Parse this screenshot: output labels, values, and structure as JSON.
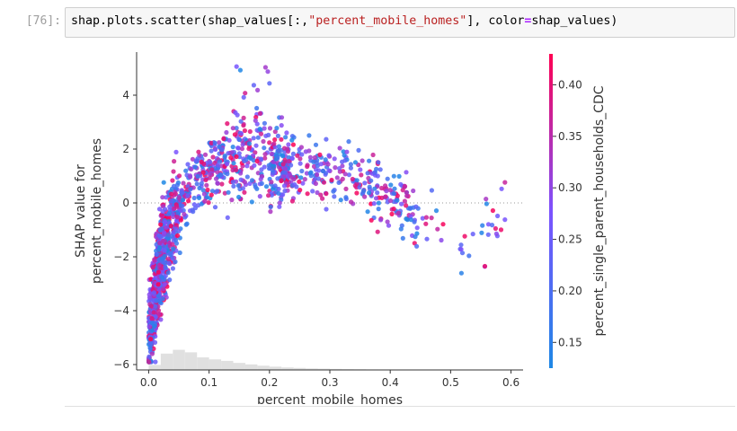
{
  "cell": {
    "prompt": "[76]:",
    "code_parts": {
      "p1": "shap.plots.scatter(shap_values[:,",
      "p2": "\"percent_mobile_homes\"",
      "p3": "], color",
      "p4": "=",
      "p5": "shap_values)"
    }
  },
  "chart_data": {
    "type": "scatter",
    "xlabel": "percent_mobile_homes",
    "ylabel_lines": [
      "SHAP value for",
      "percent_mobile_homes"
    ],
    "xlim": [
      -0.02,
      0.62
    ],
    "ylim": [
      -6.2,
      5.6
    ],
    "xticks": [
      0.0,
      0.1,
      0.2,
      0.3,
      0.4,
      0.5,
      0.6
    ],
    "xtick_labels": [
      "0.0",
      "0.1",
      "0.2",
      "0.3",
      "0.4",
      "0.5",
      "0.6"
    ],
    "yticks": [
      -6,
      -4,
      -2,
      0,
      2,
      4
    ],
    "ytick_labels": [
      "−6",
      "−4",
      "−2",
      "0",
      "2",
      "4"
    ],
    "colorbar": {
      "label": "percent_single_parent_households_CDC",
      "range": [
        0.125,
        0.43
      ],
      "ticks": [
        0.15,
        0.2,
        0.25,
        0.3,
        0.35,
        0.4
      ],
      "tick_labels": [
        "0.15",
        "0.20",
        "0.25",
        "0.30",
        "0.35",
        "0.40"
      ],
      "colors": [
        "#1e88e5",
        "#7c52ff",
        "#ff0052"
      ]
    },
    "grid": false,
    "zero_line": "dotted",
    "histogram": {
      "bin_width": 0.02,
      "relative_heights": [
        0.2,
        0.65,
        0.8,
        0.7,
        0.5,
        0.42,
        0.36,
        0.28,
        0.22,
        0.17,
        0.13,
        0.1,
        0.08,
        0.06,
        0.05,
        0.04,
        0.03,
        0.025,
        0.02,
        0.015,
        0.01,
        0.01,
        0.008,
        0.005,
        0.003,
        0.002,
        0.002,
        0.001,
        0.001,
        0.001
      ],
      "color": "#e0e0e0"
    },
    "trend": [
      [
        0.0,
        -5.0
      ],
      [
        0.02,
        -2.2
      ],
      [
        0.04,
        -0.6
      ],
      [
        0.06,
        0.3
      ],
      [
        0.08,
        0.9
      ],
      [
        0.1,
        1.2
      ],
      [
        0.12,
        1.5
      ],
      [
        0.15,
        1.8
      ],
      [
        0.18,
        1.8
      ],
      [
        0.2,
        1.5
      ],
      [
        0.25,
        1.2
      ],
      [
        0.3,
        1.1
      ],
      [
        0.35,
        0.8
      ],
      [
        0.4,
        0.3
      ],
      [
        0.45,
        -0.5
      ],
      [
        0.5,
        -0.9
      ],
      [
        0.55,
        -1.3
      ],
      [
        0.59,
        -0.3
      ]
    ]
  }
}
